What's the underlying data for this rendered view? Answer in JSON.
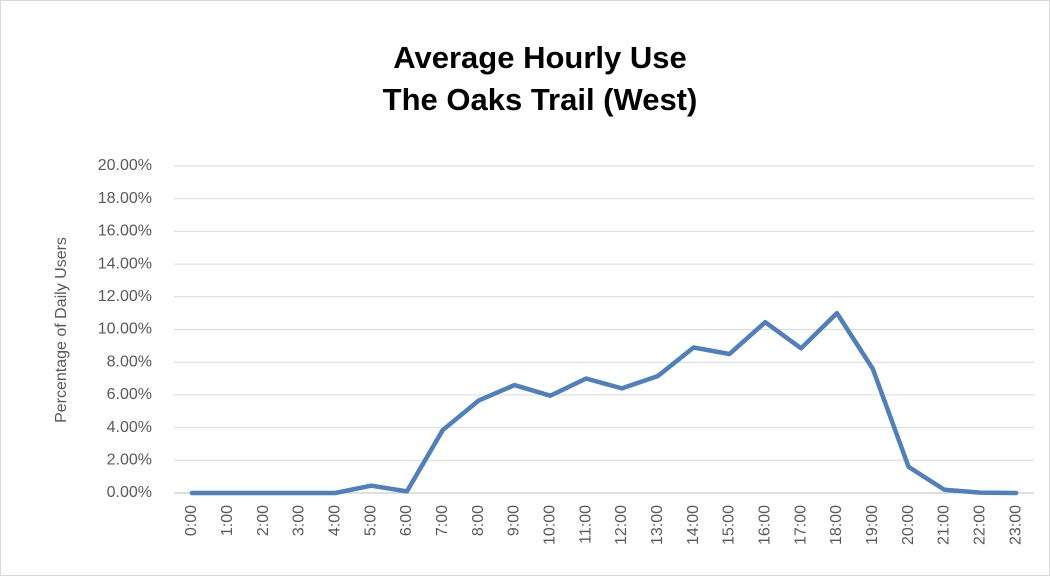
{
  "chart_data": {
    "type": "line",
    "title": [
      "Average Hourly Use",
      "The Oaks Trail (West)"
    ],
    "ylabel": "Percentage of Daily Users",
    "categories": [
      "0:00",
      "1:00",
      "2:00",
      "3:00",
      "4:00",
      "5:00",
      "6:00",
      "7:00",
      "8:00",
      "9:00",
      "10:00",
      "11:00",
      "12:00",
      "13:00",
      "14:00",
      "15:00",
      "16:00",
      "17:00",
      "18:00",
      "19:00",
      "20:00",
      "21:00",
      "22:00",
      "23:00"
    ],
    "values": [
      0,
      0,
      0,
      0,
      0,
      0.45,
      0.1,
      3.85,
      5.65,
      6.6,
      5.95,
      7.0,
      6.4,
      7.15,
      8.9,
      8.5,
      10.45,
      8.85,
      11.0,
      7.6,
      1.6,
      0.2,
      0.02,
      0
    ],
    "color": "#4f7fbc",
    "ylim": [
      0,
      20
    ],
    "yticks": [
      {
        "value": 0,
        "label": "0.00%"
      },
      {
        "value": 2,
        "label": "2.00%"
      },
      {
        "value": 4,
        "label": "4.00%"
      },
      {
        "value": 6,
        "label": "6.00%"
      },
      {
        "value": 8,
        "label": "8.00%"
      },
      {
        "value": 10,
        "label": "10.00%"
      },
      {
        "value": 12,
        "label": "12.00%"
      },
      {
        "value": 14,
        "label": "14.00%"
      },
      {
        "value": 16,
        "label": "16.00%"
      },
      {
        "value": 18,
        "label": "18.00%"
      },
      {
        "value": 20,
        "label": "20.00%"
      }
    ],
    "grid": true
  }
}
